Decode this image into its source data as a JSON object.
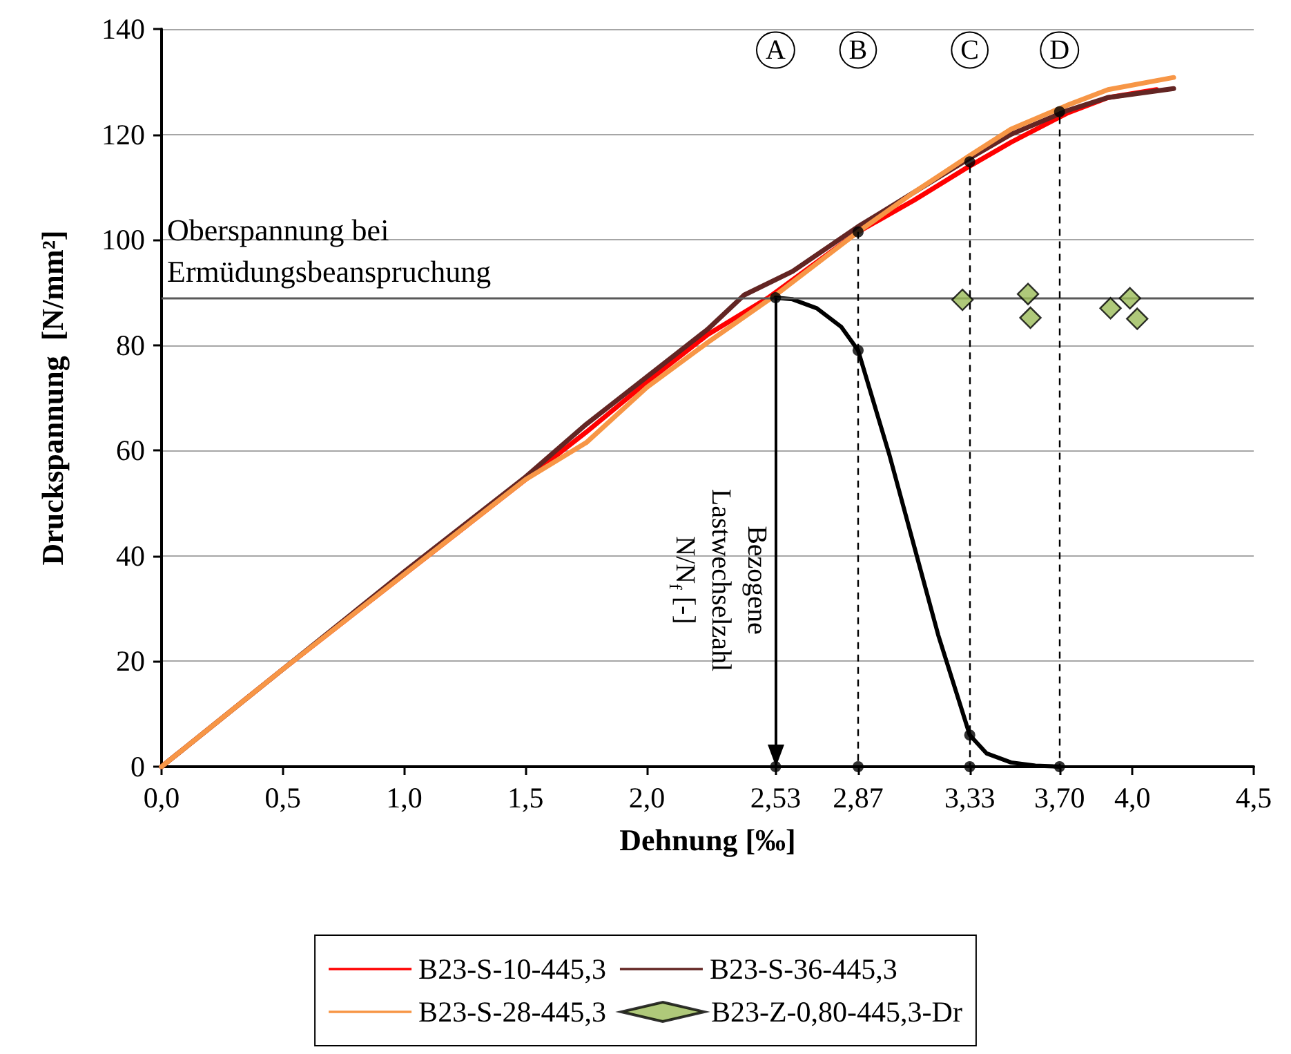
{
  "chart_data": {
    "type": "line",
    "xlabel": "Dehnung [‰]",
    "ylabel": "Druckspannung  [N/mm²]",
    "xlim": [
      0,
      4.5
    ],
    "ylim": [
      0,
      140
    ],
    "xticks": [
      {
        "value": 0,
        "label": "0,0"
      },
      {
        "value": 0.5,
        "label": "0,5"
      },
      {
        "value": 1.0,
        "label": "1,0"
      },
      {
        "value": 1.5,
        "label": "1,5"
      },
      {
        "value": 2.0,
        "label": "2,0"
      },
      {
        "value": 2.53,
        "label": "2,53"
      },
      {
        "value": 2.87,
        "label": "2,87"
      },
      {
        "value": 3.33,
        "label": "3,33"
      },
      {
        "value": 3.7,
        "label": "3,70"
      },
      {
        "value": 4.0,
        "label": "4,0"
      },
      {
        "value": 4.5,
        "label": "4,5"
      }
    ],
    "yticks": [
      0,
      20,
      40,
      60,
      80,
      100,
      120,
      140
    ],
    "grid": "y",
    "legend": "bottom",
    "marker": "none",
    "line_style": "solid",
    "series": [
      {
        "name": "B23-S-10-445,3",
        "color": "#ff0000",
        "x": [
          0,
          0.5,
          1.0,
          1.25,
          1.5,
          1.75,
          2.0,
          2.25,
          2.5,
          2.87,
          3.1,
          3.33,
          3.5,
          3.73,
          3.9,
          4.1
        ],
        "values": [
          0,
          18.5,
          36.5,
          45.5,
          54.5,
          63.5,
          73,
          82,
          89,
          101.5,
          107.5,
          114,
          118.5,
          124,
          127,
          128.5
        ]
      },
      {
        "name": "B23-S-36-445,3",
        "color": "#632523",
        "x": [
          0,
          0.5,
          1.0,
          1.5,
          1.75,
          2.0,
          2.25,
          2.4,
          2.6,
          2.87,
          3.1,
          3.33,
          3.5,
          3.73,
          3.9,
          4.17
        ],
        "values": [
          0,
          18.5,
          37,
          55,
          65,
          74,
          83,
          89.5,
          94,
          102.5,
          109,
          115.5,
          120,
          124.5,
          127,
          128.7
        ]
      },
      {
        "name": "B23-S-28-445,3",
        "color": "#f79646",
        "x": [
          0,
          0.5,
          1.0,
          1.5,
          1.75,
          2.0,
          2.25,
          2.53,
          2.87,
          3.1,
          3.33,
          3.5,
          3.73,
          3.9,
          4.17
        ],
        "values": [
          0,
          18.5,
          36.5,
          54.5,
          61.5,
          72,
          80.5,
          89.5,
          101.5,
          109,
          116,
          121,
          125.5,
          128.5,
          130.8
        ]
      },
      {
        "name": "B23-Z-0,80-445,3-Dr",
        "type": "scatter",
        "marker": "diamond",
        "color": "#9bbb59",
        "x": [
          3.3,
          3.57,
          3.58,
          3.91,
          3.99,
          4.02
        ],
        "values": [
          88.6,
          89.7,
          85.2,
          87.0,
          88.9,
          85.0
        ]
      },
      {
        "color": "#000000",
        "x": [
          2.53,
          2.6,
          2.7,
          2.8,
          2.87,
          3.0,
          3.1,
          3.2,
          3.33,
          3.4,
          3.5,
          3.6,
          3.7
        ],
        "values": [
          89,
          88.7,
          87,
          83.5,
          79,
          59,
          42,
          25,
          6,
          2.5,
          0.8,
          0.2,
          0
        ]
      },
      {
        "type": "scatter",
        "marker": "circle",
        "color": "#000000",
        "x": [
          2.53,
          2.87,
          3.33,
          3.7,
          2.53,
          2.87,
          3.33,
          2.87,
          3.33,
          3.7
        ],
        "values": [
          89,
          79,
          6,
          0,
          0,
          0,
          0,
          101.5,
          114.8,
          124.3
        ]
      }
    ],
    "ref_lines": [
      {
        "axis": "y",
        "value": 89,
        "label": "Oberspannung bei\nErmüdungsbeanspruchung",
        "color": "#595959"
      },
      {
        "axis": "x",
        "value": 2.53,
        "color": "#000000",
        "line_style": "solid"
      },
      {
        "axis": "x",
        "value": 2.87,
        "color": "#000000",
        "line_style": "dashed"
      },
      {
        "axis": "x",
        "value": 3.33,
        "color": "#000000",
        "line_style": "dashed"
      },
      {
        "axis": "x",
        "value": 3.7,
        "color": "#000000",
        "line_style": "dashed"
      }
    ],
    "annotations": [
      {
        "text": "A",
        "x": 2.53,
        "y": 136
      },
      {
        "text": "B",
        "x": 2.87,
        "y": 136
      },
      {
        "text": "C",
        "x": 3.33,
        "y": 136
      },
      {
        "text": "D",
        "x": 3.7,
        "y": 136
      },
      "Bezogene\nLastwechselzahl\nN/N$_{f}$ [-]"
    ]
  }
}
